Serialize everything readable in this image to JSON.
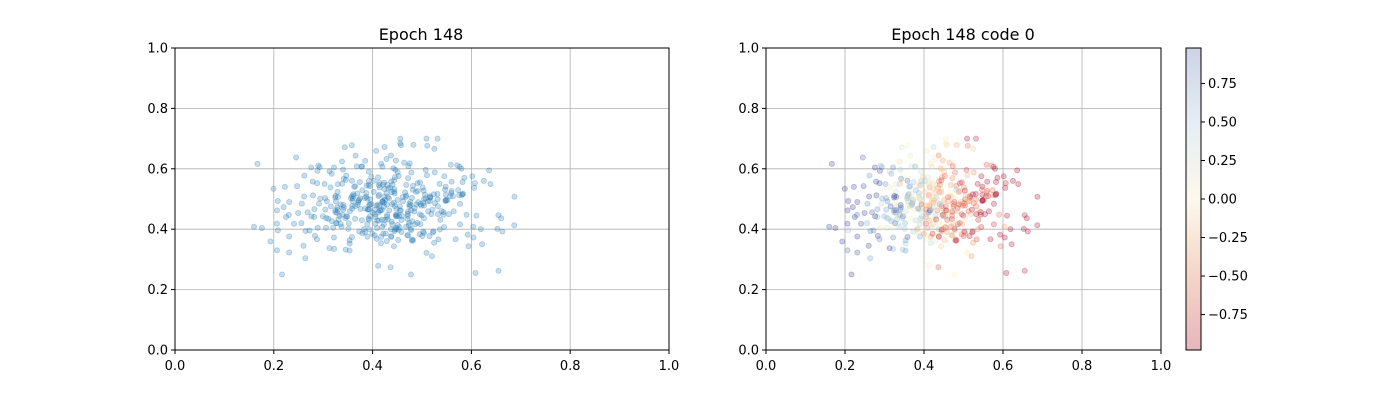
{
  "chart_data": [
    {
      "type": "scatter",
      "title": "Epoch 148",
      "xlim": [
        0,
        1
      ],
      "ylim": [
        0,
        1
      ],
      "xticks": [
        "0.0",
        "0.2",
        "0.4",
        "0.6",
        "0.8",
        "1.0"
      ],
      "yticks": [
        "0.0",
        "0.2",
        "0.4",
        "0.6",
        "0.8",
        "1.0"
      ],
      "grid": true,
      "point_color": "#1f77b4",
      "point_alpha": 0.25,
      "point_cloud": {
        "count": 420,
        "center": [
          0.43,
          0.48
        ],
        "x_range": [
          0.16,
          0.71
        ],
        "y_range": [
          0.25,
          0.7
        ]
      }
    },
    {
      "type": "scatter",
      "title": "Epoch 148 code 0",
      "xlim": [
        0,
        1
      ],
      "ylim": [
        0,
        1
      ],
      "xticks": [
        "0.0",
        "0.2",
        "0.4",
        "0.6",
        "0.8",
        "1.0"
      ],
      "yticks": [
        "0.0",
        "0.2",
        "0.4",
        "0.6",
        "0.8",
        "1.0"
      ],
      "grid": true,
      "colormap": "RdYlBu",
      "point_alpha": 0.25,
      "colorbar": {
        "range": [
          -0.98,
          0.98
        ],
        "ticks": [
          "0.75",
          "0.50",
          "0.25",
          "0.00",
          "−0.25",
          "−0.50",
          "−0.75"
        ],
        "tick_values": [
          0.75,
          0.5,
          0.25,
          0.0,
          -0.25,
          -0.5,
          -0.75
        ]
      }
    }
  ]
}
